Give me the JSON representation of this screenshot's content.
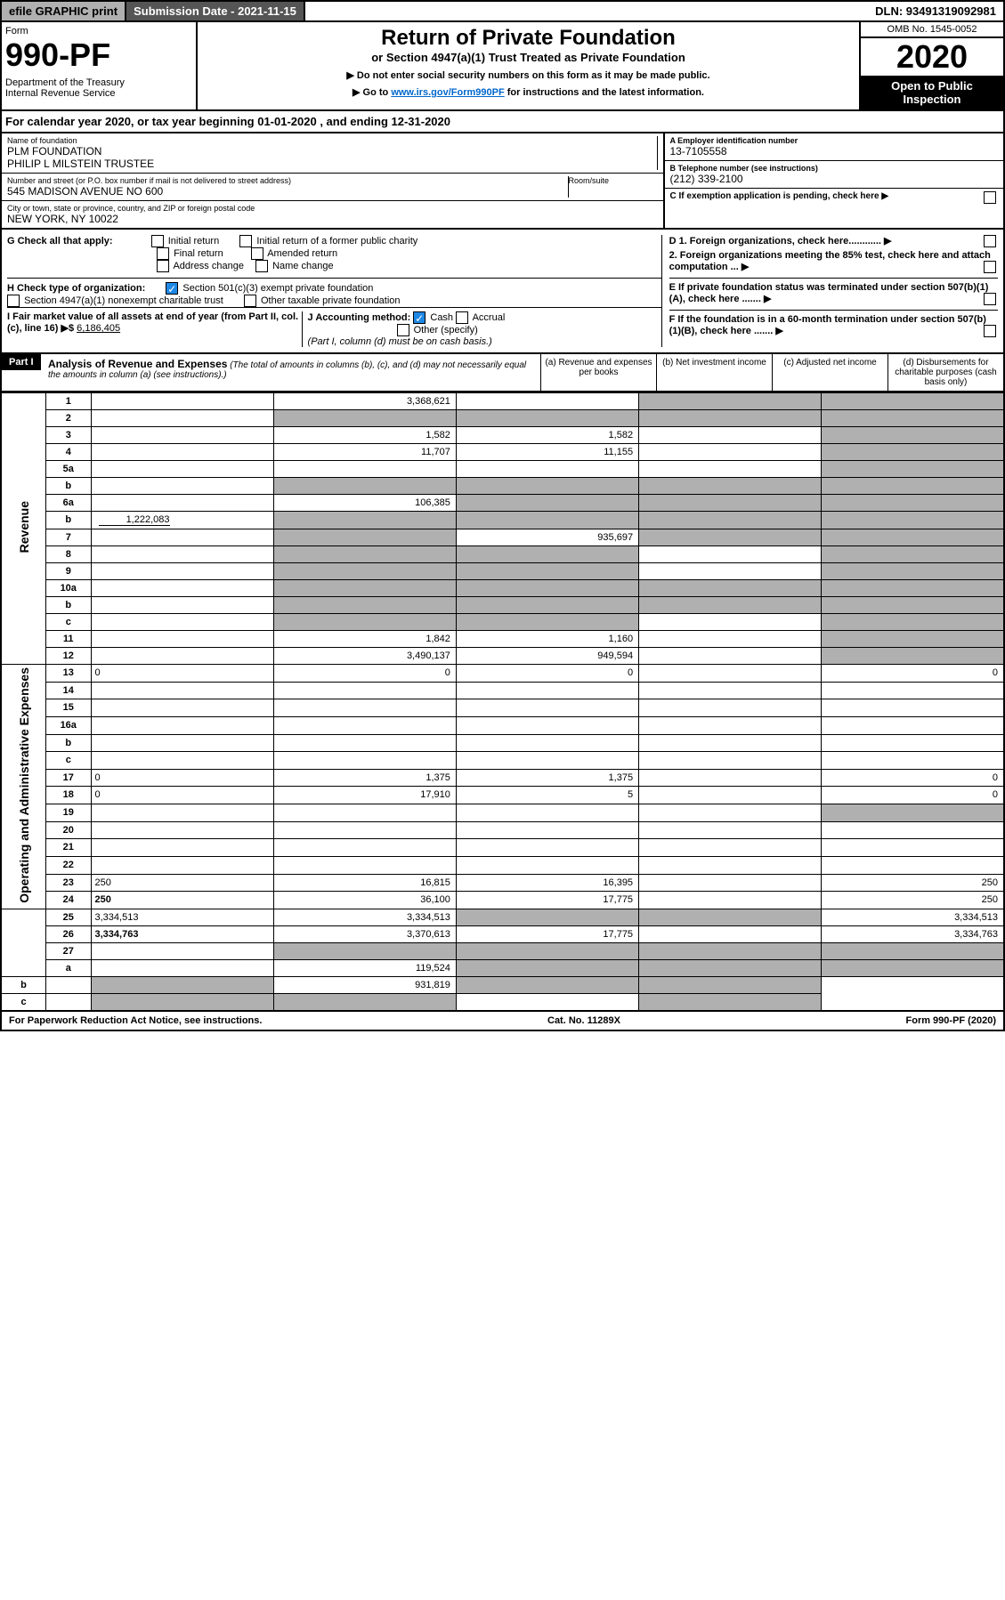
{
  "top_bar": {
    "efile": "efile GRAPHIC print",
    "submission": "Submission Date - 2021-11-15",
    "dln": "DLN: 93491319092981"
  },
  "header": {
    "form_label": "Form",
    "form_number": "990-PF",
    "dept": "Department of the Treasury\nInternal Revenue Service",
    "title": "Return of Private Foundation",
    "subtitle": "or Section 4947(a)(1) Trust Treated as Private Foundation",
    "instr1": "▶ Do not enter social security numbers on this form as it may be made public.",
    "instr2_prefix": "▶ Go to ",
    "instr2_link": "www.irs.gov/Form990PF",
    "instr2_suffix": " for instructions and the latest information.",
    "omb": "OMB No. 1545-0052",
    "year": "2020",
    "inspection": "Open to Public Inspection"
  },
  "cal_year": "For calendar year 2020, or tax year beginning 01-01-2020                               , and ending 12-31-2020",
  "info": {
    "name_label": "Name of foundation",
    "name": "PLM FOUNDATION\nPHILIP L MILSTEIN TRUSTEE",
    "addr_label": "Number and street (or P.O. box number if mail is not delivered to street address)",
    "addr": "545 MADISON AVENUE NO 600",
    "room_label": "Room/suite",
    "city_label": "City or town, state or province, country, and ZIP or foreign postal code",
    "city": "NEW YORK, NY  10022",
    "ein_label": "A Employer identification number",
    "ein": "13-7105558",
    "phone_label": "B Telephone number (see instructions)",
    "phone": "(212) 339-2100",
    "c_label": "C If exemption application is pending, check here",
    "d1": "D 1. Foreign organizations, check here............",
    "d2": "2. Foreign organizations meeting the 85% test, check here and attach computation ...",
    "e_label": "E  If private foundation status was terminated under section 507(b)(1)(A), check here .......",
    "f_label": "F  If the foundation is in a 60-month termination under section 507(b)(1)(B), check here .......",
    "g_label": "G Check all that apply:",
    "g_opts": [
      "Initial return",
      "Initial return of a former public charity",
      "Final return",
      "Amended return",
      "Address change",
      "Name change"
    ],
    "h_label": "H Check type of organization:",
    "h_opts": [
      "Section 501(c)(3) exempt private foundation",
      "Section 4947(a)(1) nonexempt charitable trust",
      "Other taxable private foundation"
    ],
    "i_label": "I Fair market value of all assets at end of year (from Part II, col. (c), line 16) ▶$",
    "i_value": "6,186,405",
    "j_label": "J Accounting method:",
    "j_opts": [
      "Cash",
      "Accrual",
      "Other (specify)"
    ],
    "j_note": "(Part I, column (d) must be on cash basis.)"
  },
  "part1": {
    "label": "Part I",
    "title": "Analysis of Revenue and Expenses",
    "note": "(The total of amounts in columns (b), (c), and (d) may not necessarily equal the amounts in column (a) (see instructions).)",
    "cols": {
      "a": "(a)   Revenue and expenses per books",
      "b": "(b)   Net investment income",
      "c": "(c)  Adjusted net income",
      "d": "(d)  Disbursements for charitable purposes (cash basis only)"
    }
  },
  "sections": {
    "revenue": "Revenue",
    "expenses": "Operating and Administrative Expenses"
  },
  "rows": [
    {
      "n": "1",
      "d": "",
      "a": "3,368,621",
      "b": "",
      "c": "",
      "c_shade": true,
      "d_shade": true
    },
    {
      "n": "2",
      "d": "",
      "a": "",
      "b": "",
      "c": "",
      "a_shade": true,
      "b_shade": true,
      "c_shade": true,
      "d_shade": true,
      "bold_not": true
    },
    {
      "n": "3",
      "d": "",
      "a": "1,582",
      "b": "1,582",
      "c": "",
      "d_shade": true
    },
    {
      "n": "4",
      "d": "",
      "a": "11,707",
      "b": "11,155",
      "c": "",
      "d_shade": true
    },
    {
      "n": "5a",
      "d": "",
      "a": "",
      "b": "",
      "c": "",
      "d_shade": true
    },
    {
      "n": "b",
      "d": "",
      "a": "",
      "b": "",
      "c": "",
      "a_shade": true,
      "b_shade": true,
      "c_shade": true,
      "d_shade": true
    },
    {
      "n": "6a",
      "d": "",
      "a": "106,385",
      "b": "",
      "c": "",
      "b_shade": true,
      "c_shade": true,
      "d_shade": true
    },
    {
      "n": "b",
      "d": "",
      "gross": "1,222,083",
      "a": "",
      "b": "",
      "c": "",
      "a_shade": true,
      "b_shade": true,
      "c_shade": true,
      "d_shade": true
    },
    {
      "n": "7",
      "d": "",
      "a": "",
      "b": "935,697",
      "c": "",
      "a_shade": true,
      "c_shade": true,
      "d_shade": true
    },
    {
      "n": "8",
      "d": "",
      "a": "",
      "b": "",
      "c": "",
      "a_shade": true,
      "b_shade": true,
      "d_shade": true
    },
    {
      "n": "9",
      "d": "",
      "a": "",
      "b": "",
      "c": "",
      "a_shade": true,
      "b_shade": true,
      "d_shade": true
    },
    {
      "n": "10a",
      "d": "",
      "a": "",
      "b": "",
      "c": "",
      "a_shade": true,
      "b_shade": true,
      "c_shade": true,
      "d_shade": true
    },
    {
      "n": "b",
      "d": "",
      "a": "",
      "b": "",
      "c": "",
      "a_shade": true,
      "b_shade": true,
      "c_shade": true,
      "d_shade": true
    },
    {
      "n": "c",
      "d": "",
      "a": "",
      "b": "",
      "c": "",
      "a_shade": true,
      "b_shade": true,
      "d_shade": true
    },
    {
      "n": "11",
      "d": "",
      "a": "1,842",
      "b": "1,160",
      "c": "",
      "d_shade": true
    },
    {
      "n": "12",
      "d": "",
      "a": "3,490,137",
      "b": "949,594",
      "c": "",
      "d_shade": true,
      "bold": true
    },
    {
      "n": "13",
      "d": "0",
      "a": "0",
      "b": "0",
      "c": ""
    },
    {
      "n": "14",
      "d": "",
      "a": "",
      "b": "",
      "c": ""
    },
    {
      "n": "15",
      "d": "",
      "a": "",
      "b": "",
      "c": ""
    },
    {
      "n": "16a",
      "d": "",
      "a": "",
      "b": "",
      "c": ""
    },
    {
      "n": "b",
      "d": "",
      "a": "",
      "b": "",
      "c": ""
    },
    {
      "n": "c",
      "d": "",
      "a": "",
      "b": "",
      "c": ""
    },
    {
      "n": "17",
      "d": "0",
      "a": "1,375",
      "b": "1,375",
      "c": ""
    },
    {
      "n": "18",
      "d": "0",
      "a": "17,910",
      "b": "5",
      "c": ""
    },
    {
      "n": "19",
      "d": "",
      "a": "",
      "b": "",
      "c": "",
      "d_shade": true
    },
    {
      "n": "20",
      "d": "",
      "a": "",
      "b": "",
      "c": ""
    },
    {
      "n": "21",
      "d": "",
      "a": "",
      "b": "",
      "c": ""
    },
    {
      "n": "22",
      "d": "",
      "a": "",
      "b": "",
      "c": ""
    },
    {
      "n": "23",
      "d": "250",
      "a": "16,815",
      "b": "16,395",
      "c": ""
    },
    {
      "n": "24",
      "d": "250",
      "a": "36,100",
      "b": "17,775",
      "c": "",
      "bold": true
    },
    {
      "n": "25",
      "d": "3,334,513",
      "a": "3,334,513",
      "b": "",
      "c": "",
      "b_shade": true,
      "c_shade": true
    },
    {
      "n": "26",
      "d": "3,334,763",
      "a": "3,370,613",
      "b": "17,775",
      "c": "",
      "bold": true
    },
    {
      "n": "27",
      "d": "",
      "a": "",
      "b": "",
      "c": "",
      "a_shade": true,
      "b_shade": true,
      "c_shade": true,
      "d_shade": true
    },
    {
      "n": "a",
      "d": "",
      "a": "119,524",
      "b": "",
      "c": "",
      "b_shade": true,
      "c_shade": true,
      "d_shade": true,
      "bold": true
    },
    {
      "n": "b",
      "d": "",
      "a": "",
      "b": "931,819",
      "c": "",
      "a_shade": true,
      "c_shade": true,
      "d_shade": true,
      "bold": true
    },
    {
      "n": "c",
      "d": "",
      "a": "",
      "b": "",
      "c": "",
      "a_shade": true,
      "b_shade": true,
      "d_shade": true,
      "bold": true
    }
  ],
  "footer": {
    "left": "For Paperwork Reduction Act Notice, see instructions.",
    "center": "Cat. No. 11289X",
    "right": "Form 990-PF (2020)"
  }
}
